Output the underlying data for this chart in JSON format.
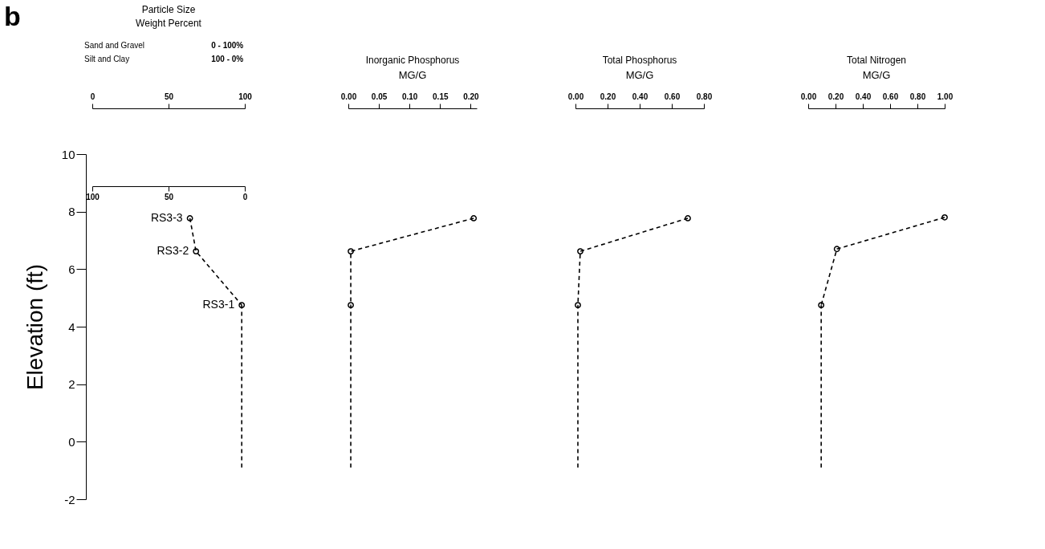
{
  "chart_data": [
    {
      "type": "line",
      "title": "Particle Size",
      "subtitle": "Weight Percent",
      "ylabel": "Elevation (ft)",
      "annotations": [
        "b",
        "Sand and Gravel",
        "0 - 100%",
        "Silt and Clay",
        "100 - 0%",
        {
          "text": "RS3-3",
          "x": 64,
          "y": 7.77
        },
        {
          "text": "RS3-2",
          "x": 68,
          "y": 6.62
        },
        {
          "text": "RS3-1",
          "x": 98,
          "y": 4.75
        }
      ],
      "xlim": [
        0,
        100
      ],
      "xticks": [
        0,
        50,
        100
      ],
      "x2lim": [
        100,
        0
      ],
      "x2ticks": [
        100,
        50,
        0
      ],
      "ylim": [
        -2,
        10
      ],
      "yticks": [
        -2,
        0,
        2,
        4,
        6,
        8,
        10
      ],
      "series": [
        {
          "type": "line",
          "color": "#000000",
          "marker": "circle",
          "line_style": "dashed",
          "x": [
            64,
            68,
            98
          ],
          "values": [
            7.77,
            6.62,
            4.75
          ]
        },
        {
          "type": "line",
          "color": "#000000",
          "marker": "none",
          "line_style": "dashed",
          "x": [
            98,
            98
          ],
          "values": [
            -0.9,
            4.75
          ]
        }
      ]
    },
    {
      "type": "line",
      "title": "Inorganic Phosphorus",
      "xlabel": "MG/G",
      "xlim": [
        0,
        0.21
      ],
      "xticks": [
        {
          "value": 0,
          "label": "0.00"
        },
        {
          "value": 0.05,
          "label": "0.05"
        },
        {
          "value": 0.1,
          "label": "0.10"
        },
        {
          "value": 0.15,
          "label": "0.15"
        },
        {
          "value": 0.2,
          "label": "0.20"
        }
      ],
      "ylim": [
        -2,
        10
      ],
      "tick_labels": "x",
      "series": [
        {
          "type": "line",
          "color": "#000000",
          "marker": "circle",
          "line_style": "dashed",
          "x": [
            0.205,
            0.004,
            0.004
          ],
          "values": [
            7.77,
            6.62,
            4.75
          ]
        },
        {
          "type": "line",
          "color": "#000000",
          "marker": "none",
          "line_style": "dashed",
          "x": [
            0.004,
            0.004
          ],
          "values": [
            -0.9,
            4.75
          ]
        }
      ]
    },
    {
      "type": "line",
      "title": "Total Phosphorus",
      "xlabel": "MG/G",
      "xlim": [
        0,
        0.8
      ],
      "xticks": [
        {
          "value": 0,
          "label": "0.00"
        },
        {
          "value": 0.2,
          "label": "0.20"
        },
        {
          "value": 0.4,
          "label": "0.40"
        },
        {
          "value": 0.6,
          "label": "0.60"
        },
        {
          "value": 0.8,
          "label": "0.80"
        }
      ],
      "ylim": [
        -2,
        10
      ],
      "tick_labels": "x",
      "series": [
        {
          "type": "line",
          "color": "#000000",
          "marker": "circle",
          "line_style": "dashed",
          "x": [
            0.7,
            0.03,
            0.015
          ],
          "values": [
            7.77,
            6.62,
            4.75
          ]
        },
        {
          "type": "line",
          "color": "#000000",
          "marker": "none",
          "line_style": "dashed",
          "x": [
            0.015,
            0.015
          ],
          "values": [
            -0.9,
            4.75
          ]
        }
      ]
    },
    {
      "type": "line",
      "title": "Total Nitrogen",
      "xlabel": "MG/G",
      "xlim": [
        0,
        1
      ],
      "xticks": [
        {
          "value": 0,
          "label": "0.00"
        },
        {
          "value": 0.2,
          "label": "0.20"
        },
        {
          "value": 0.4,
          "label": "0.40"
        },
        {
          "value": 0.6,
          "label": "0.60"
        },
        {
          "value": 0.8,
          "label": "0.80"
        },
        {
          "value": 1,
          "label": "1.00"
        }
      ],
      "ylim": [
        -2,
        10
      ],
      "tick_labels": "x",
      "series": [
        {
          "type": "line",
          "color": "#000000",
          "marker": "circle",
          "line_style": "dashed",
          "x": [
            1.0,
            0.21,
            0.095
          ],
          "values": [
            7.8,
            6.7,
            4.75
          ]
        },
        {
          "type": "line",
          "color": "#000000",
          "marker": "none",
          "line_style": "dashed",
          "x": [
            0.095,
            0.095
          ],
          "values": [
            -0.9,
            4.75
          ]
        }
      ]
    }
  ]
}
